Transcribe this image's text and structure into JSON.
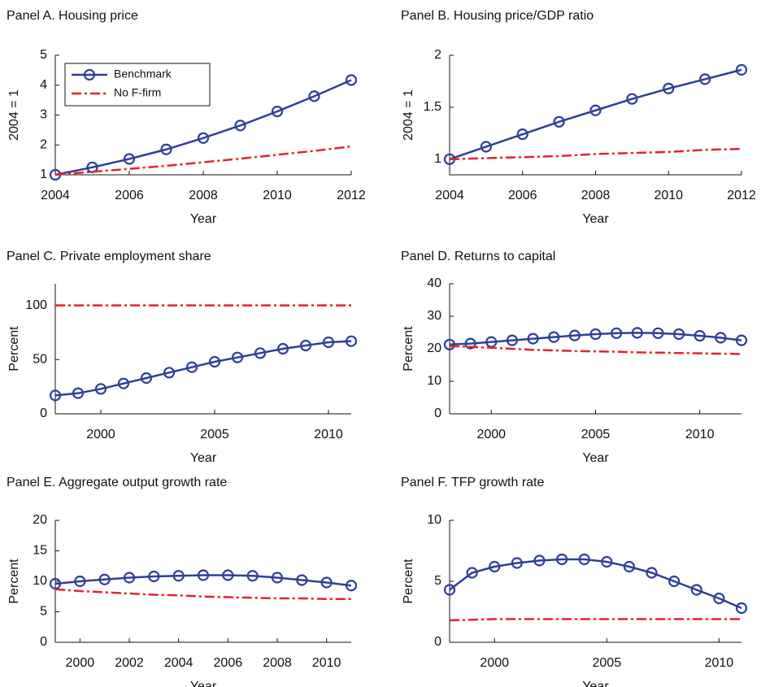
{
  "chart_data": [
    {
      "type": "line",
      "title": "Panel A. Housing price",
      "xlabel": "Year",
      "ylabel": "2004 = 1",
      "x": [
        2004,
        2005,
        2006,
        2007,
        2008,
        2009,
        2010,
        2011,
        2012
      ],
      "xlim": [
        2004,
        2012
      ],
      "xticks": [
        2004,
        2006,
        2008,
        2010,
        2012
      ],
      "ylim": [
        1,
        5
      ],
      "yticks": [
        1,
        2,
        3,
        4,
        5
      ],
      "legend": "upper left",
      "series": [
        {
          "name": "Benchmark",
          "color": "#2e3f9a",
          "marker": "circle",
          "values": [
            1,
            1.25,
            1.53,
            1.85,
            2.23,
            2.65,
            3.12,
            3.63,
            4.17
          ]
        },
        {
          "name": "No F-firm",
          "color": "#e8202a",
          "dash": "dashdot",
          "values": [
            1,
            1.1,
            1.2,
            1.3,
            1.42,
            1.54,
            1.67,
            1.8,
            1.95
          ]
        }
      ]
    },
    {
      "type": "line",
      "title": "Panel B. Housing price/GDP ratio",
      "xlabel": "Year",
      "ylabel": "2004 = 1",
      "x": [
        2004,
        2005,
        2006,
        2007,
        2008,
        2009,
        2010,
        2011,
        2012
      ],
      "xlim": [
        2004,
        2012
      ],
      "xticks": [
        2004,
        2006,
        2008,
        2010,
        2012
      ],
      "ylim": [
        0.85,
        2
      ],
      "yticks": [
        1,
        1.5,
        2
      ],
      "series": [
        {
          "color": "#2e3f9a",
          "marker": "circle",
          "values": [
            1,
            1.12,
            1.24,
            1.36,
            1.47,
            1.58,
            1.68,
            1.77,
            1.86
          ]
        },
        {
          "color": "#e8202a",
          "dash": "dashdot",
          "values": [
            1,
            1.01,
            1.02,
            1.03,
            1.05,
            1.06,
            1.07,
            1.09,
            1.1
          ]
        }
      ]
    },
    {
      "type": "line",
      "title": "Panel C. Private employment share",
      "xlabel": "Year",
      "ylabel": "Percent",
      "x": [
        1998,
        1999,
        2000,
        2001,
        2002,
        2003,
        2004,
        2005,
        2006,
        2007,
        2008,
        2009,
        2010,
        2011
      ],
      "xlim": [
        1998,
        2011
      ],
      "xticks": [
        2000,
        2005,
        2010
      ],
      "ylim": [
        0,
        120
      ],
      "yticks": [
        0,
        50,
        100
      ],
      "series": [
        {
          "color": "#2e3f9a",
          "marker": "circle",
          "values": [
            17,
            19,
            23,
            28,
            33,
            38,
            43,
            48,
            52,
            56,
            60,
            63,
            66,
            67
          ]
        },
        {
          "color": "#e8202a",
          "dash": "dashdot",
          "values": [
            100,
            100,
            100,
            100,
            100,
            100,
            100,
            100,
            100,
            100,
            100,
            100,
            100,
            100
          ]
        }
      ]
    },
    {
      "type": "line",
      "title": "Panel D. Returns to capital",
      "xlabel": "Year",
      "ylabel": "Percent",
      "x": [
        1998,
        1999,
        2000,
        2001,
        2002,
        2003,
        2004,
        2005,
        2006,
        2007,
        2008,
        2009,
        2010,
        2011,
        2012
      ],
      "xlim": [
        1998,
        2012
      ],
      "xticks": [
        2000,
        2005,
        2010
      ],
      "ylim": [
        0,
        40
      ],
      "yticks": [
        0,
        10,
        20,
        30,
        40
      ],
      "series": [
        {
          "color": "#2e3f9a",
          "marker": "circle",
          "values": [
            21.3,
            21.6,
            22.1,
            22.6,
            23.1,
            23.6,
            24.1,
            24.5,
            24.8,
            24.9,
            24.8,
            24.5,
            24.0,
            23.4,
            22.6
          ]
        },
        {
          "color": "#e8202a",
          "dash": "dashdot",
          "values": [
            20.8,
            20.6,
            20.3,
            20.0,
            19.7,
            19.5,
            19.3,
            19.2,
            19.1,
            18.9,
            18.8,
            18.7,
            18.6,
            18.5,
            18.4
          ]
        }
      ]
    },
    {
      "type": "line",
      "title": "Panel E. Aggregate output growth rate",
      "xlabel": "Year",
      "ylabel": "Percent",
      "x": [
        1999,
        2000,
        2001,
        2002,
        2003,
        2004,
        2005,
        2006,
        2007,
        2008,
        2009,
        2010,
        2011
      ],
      "xlim": [
        1999,
        2011
      ],
      "xticks": [
        2000,
        2002,
        2004,
        2006,
        2008,
        2010
      ],
      "ylim": [
        0,
        20
      ],
      "yticks": [
        0,
        5,
        10,
        15,
        20
      ],
      "series": [
        {
          "color": "#2e3f9a",
          "marker": "circle",
          "values": [
            9.6,
            10.0,
            10.3,
            10.6,
            10.8,
            10.9,
            11.0,
            11.0,
            10.9,
            10.6,
            10.2,
            9.8,
            9.3
          ]
        },
        {
          "color": "#e8202a",
          "dash": "dashdot",
          "values": [
            8.7,
            8.4,
            8.2,
            8.0,
            7.8,
            7.7,
            7.5,
            7.4,
            7.3,
            7.2,
            7.2,
            7.1,
            7.1
          ]
        }
      ]
    },
    {
      "type": "line",
      "title": "Panel F. TFP growth rate",
      "xlabel": "Year",
      "ylabel": "Percent",
      "x": [
        1998,
        1999,
        2000,
        2001,
        2002,
        2003,
        2004,
        2005,
        2006,
        2007,
        2008,
        2009,
        2010,
        2011
      ],
      "xlim": [
        1998,
        2011
      ],
      "xticks": [
        2000,
        2005,
        2010
      ],
      "ylim": [
        0,
        10
      ],
      "yticks": [
        0,
        5,
        10
      ],
      "series": [
        {
          "color": "#2e3f9a",
          "marker": "circle",
          "values": [
            4.3,
            5.7,
            6.2,
            6.5,
            6.7,
            6.8,
            6.8,
            6.6,
            6.2,
            5.7,
            5.0,
            4.3,
            3.6,
            2.8
          ]
        },
        {
          "color": "#e8202a",
          "dash": "dashdot",
          "values": [
            1.8,
            1.85,
            1.9,
            1.9,
            1.9,
            1.9,
            1.9,
            1.9,
            1.9,
            1.9,
            1.9,
            1.9,
            1.9,
            1.9
          ]
        }
      ]
    }
  ]
}
